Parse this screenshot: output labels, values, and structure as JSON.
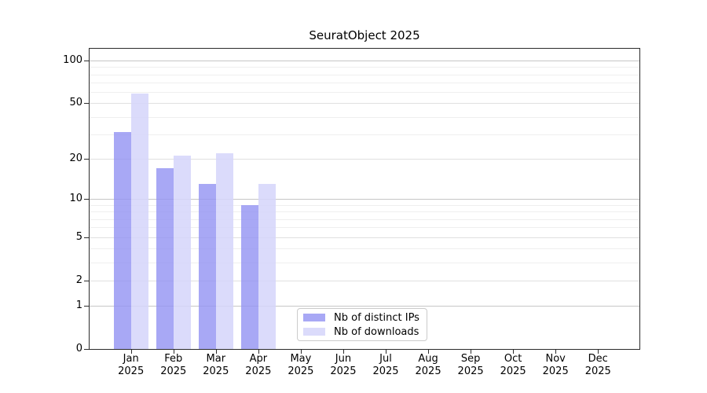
{
  "chart_data": {
    "type": "bar",
    "title": "SeuratObject 2025",
    "categories": [
      {
        "month": "Jan",
        "year": "2025"
      },
      {
        "month": "Feb",
        "year": "2025"
      },
      {
        "month": "Mar",
        "year": "2025"
      },
      {
        "month": "Apr",
        "year": "2025"
      },
      {
        "month": "May",
        "year": "2025"
      },
      {
        "month": "Jun",
        "year": "2025"
      },
      {
        "month": "Jul",
        "year": "2025"
      },
      {
        "month": "Aug",
        "year": "2025"
      },
      {
        "month": "Sep",
        "year": "2025"
      },
      {
        "month": "Oct",
        "year": "2025"
      },
      {
        "month": "Nov",
        "year": "2025"
      },
      {
        "month": "Dec",
        "year": "2025"
      }
    ],
    "series": [
      {
        "name": "Nb of distinct IPs",
        "color": "#a4a4f3",
        "fill_rgba": "rgba(146,146,243,0.8)",
        "values": [
          31,
          17,
          13,
          9,
          null,
          null,
          null,
          null,
          null,
          null,
          null,
          null
        ]
      },
      {
        "name": "Nb of downloads",
        "color": "#d9d9f9",
        "fill_rgba": "rgba(213,213,250,0.85)",
        "values": [
          59,
          21,
          22,
          13,
          null,
          null,
          null,
          null,
          null,
          null,
          null,
          null
        ]
      }
    ],
    "y_axis": {
      "scale": "log1p",
      "ticks": [
        0,
        1,
        2,
        5,
        10,
        20,
        50,
        100
      ],
      "strong_gridline_ticks": [
        1,
        10,
        100
      ],
      "minor_gridlines": [
        3,
        4,
        6,
        7,
        8,
        9,
        30,
        40,
        60,
        70,
        80,
        90
      ],
      "ylim": [
        0,
        125
      ]
    },
    "grid": true,
    "legend_position": "inside-lower-center",
    "colors": {
      "axis": "#2b2b2b",
      "gridline_minor": "#efefef",
      "gridline_major": "#e0e0e0",
      "gridline_strong": "#c6c6c6",
      "background": "#ffffff"
    }
  }
}
